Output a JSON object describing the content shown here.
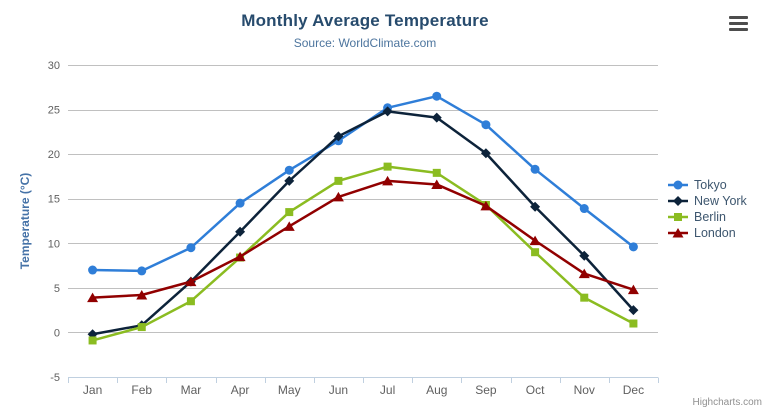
{
  "chart_data": {
    "type": "line",
    "title": "Monthly Average Temperature",
    "subtitle": "Source: WorldClimate.com",
    "xlabel": "",
    "ylabel": "Temperature (°C)",
    "ylim": [
      -5,
      30
    ],
    "ytick_step": 5,
    "grid": true,
    "legend_position": "right",
    "categories": [
      "Jan",
      "Feb",
      "Mar",
      "Apr",
      "May",
      "Jun",
      "Jul",
      "Aug",
      "Sep",
      "Oct",
      "Nov",
      "Dec"
    ],
    "series": [
      {
        "name": "Tokyo",
        "color": "#2f7ed8",
        "marker": "circle",
        "values": [
          7.0,
          6.9,
          9.5,
          14.5,
          18.2,
          21.5,
          25.2,
          26.5,
          23.3,
          18.3,
          13.9,
          9.6
        ]
      },
      {
        "name": "New York",
        "color": "#0d233a",
        "marker": "diamond",
        "values": [
          -0.2,
          0.8,
          5.7,
          11.3,
          17.0,
          22.0,
          24.8,
          24.1,
          20.1,
          14.1,
          8.6,
          2.5
        ]
      },
      {
        "name": "Berlin",
        "color": "#8bbc21",
        "marker": "square",
        "values": [
          -0.9,
          0.6,
          3.5,
          8.4,
          13.5,
          17.0,
          18.6,
          17.9,
          14.3,
          9.0,
          3.9,
          1.0
        ]
      },
      {
        "name": "London",
        "color": "#910000",
        "marker": "triangle",
        "values": [
          3.9,
          4.2,
          5.7,
          8.5,
          11.9,
          15.2,
          17.0,
          16.6,
          14.2,
          10.3,
          6.6,
          4.8
        ]
      }
    ]
  },
  "theme": {
    "grid_color": "#C0C0C0",
    "axis_line_color": "#C0D0E0",
    "axis_label_color": "#606060",
    "title_color": "#274b6d",
    "subtitle_color": "#4d759e",
    "y_axis_title_color": "#4572a7",
    "legend_text_color": "#3E576F",
    "credits_color": "#909090",
    "export_icon_color": "#4d4d4d"
  },
  "icons": {
    "export_menu": "hamburger-menu-icon"
  },
  "credits": {
    "label": "Highcharts.com"
  }
}
